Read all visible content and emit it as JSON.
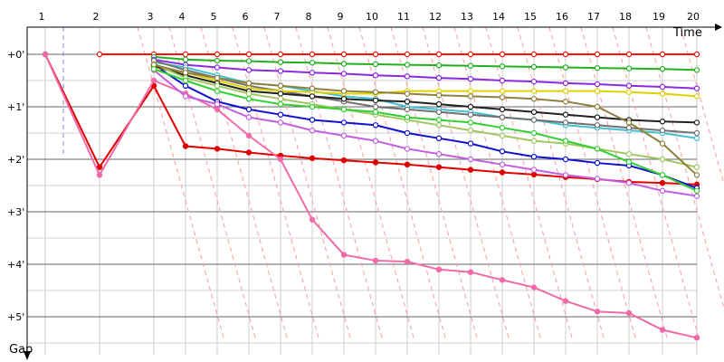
{
  "chart_data": {
    "type": "line",
    "xlabel": "Time",
    "ylabel": "Gap",
    "lap_labels": [
      "1",
      "2",
      "3",
      "4",
      "5",
      "6",
      "7",
      "8",
      "9",
      "10",
      "11",
      "12",
      "13",
      "14",
      "15",
      "16",
      "17",
      "18",
      "19",
      "20"
    ],
    "gap_ticks": [
      "+0'",
      "+1'",
      "+2'",
      "+3'",
      "+4'",
      "+5'"
    ],
    "ylim_minutes": [
      0,
      5.5
    ],
    "grid": true,
    "dashed_guides": true,
    "series": [
      {
        "color": "#e00000",
        "points": [
          [
            1,
            0
          ],
          [
            2,
            2.15
          ],
          [
            3,
            0.6
          ],
          [
            4,
            1.75
          ],
          [
            5,
            1.8
          ],
          [
            6,
            1.87
          ],
          [
            7,
            1.93
          ],
          [
            8,
            1.98
          ],
          [
            9,
            2.02
          ],
          [
            10,
            2.06
          ],
          [
            11,
            2.1
          ],
          [
            12,
            2.15
          ],
          [
            13,
            2.2
          ],
          [
            14,
            2.25
          ],
          [
            15,
            2.29
          ],
          [
            16,
            2.34
          ],
          [
            17,
            2.38
          ],
          [
            18,
            2.43
          ],
          [
            19,
            2.45
          ],
          [
            20,
            2.48
          ]
        ]
      },
      {
        "color": "#f06aa8",
        "points": [
          [
            1,
            0
          ],
          [
            2,
            2.3
          ],
          [
            3,
            0.5
          ],
          [
            4,
            0.75
          ],
          [
            5,
            1.05
          ],
          [
            6,
            1.55
          ],
          [
            7,
            2.0
          ],
          [
            8,
            3.15
          ],
          [
            9,
            3.82
          ],
          [
            10,
            3.93
          ],
          [
            11,
            3.95
          ],
          [
            12,
            4.1
          ],
          [
            13,
            4.15
          ],
          [
            14,
            4.3
          ],
          [
            15,
            4.44
          ],
          [
            16,
            4.7
          ],
          [
            17,
            4.9
          ],
          [
            18,
            4.93
          ],
          [
            19,
            5.25
          ],
          [
            20,
            5.4
          ]
        ]
      },
      {
        "color": "#ff1010",
        "points": [
          [
            2,
            0
          ],
          [
            3,
            0
          ],
          [
            4,
            0
          ],
          [
            5,
            0
          ],
          [
            6,
            0
          ],
          [
            7,
            0
          ],
          [
            8,
            0
          ],
          [
            9,
            0
          ],
          [
            10,
            0
          ],
          [
            11,
            0
          ],
          [
            12,
            0
          ],
          [
            13,
            0
          ],
          [
            14,
            0
          ],
          [
            15,
            0
          ],
          [
            16,
            0
          ],
          [
            17,
            0
          ],
          [
            18,
            0
          ],
          [
            19,
            0
          ],
          [
            20,
            0
          ]
        ]
      },
      {
        "color": "#20b020",
        "points": [
          [
            3,
            0.05
          ],
          [
            4,
            0.1
          ],
          [
            5,
            0.12
          ],
          [
            6,
            0.13
          ],
          [
            7,
            0.15
          ],
          [
            8,
            0.16
          ],
          [
            9,
            0.18
          ],
          [
            10,
            0.19
          ],
          [
            11,
            0.2
          ],
          [
            12,
            0.21
          ],
          [
            13,
            0.22
          ],
          [
            14,
            0.23
          ],
          [
            15,
            0.24
          ],
          [
            16,
            0.25
          ],
          [
            17,
            0.26
          ],
          [
            18,
            0.27
          ],
          [
            19,
            0.28
          ],
          [
            20,
            0.3
          ]
        ]
      },
      {
        "color": "#8a2be2",
        "points": [
          [
            3,
            0.1
          ],
          [
            4,
            0.2
          ],
          [
            5,
            0.25
          ],
          [
            6,
            0.3
          ],
          [
            7,
            0.32
          ],
          [
            8,
            0.35
          ],
          [
            9,
            0.37
          ],
          [
            10,
            0.4
          ],
          [
            11,
            0.42
          ],
          [
            12,
            0.45
          ],
          [
            13,
            0.47
          ],
          [
            14,
            0.5
          ],
          [
            15,
            0.52
          ],
          [
            16,
            0.55
          ],
          [
            17,
            0.57
          ],
          [
            18,
            0.6
          ],
          [
            19,
            0.62
          ],
          [
            20,
            0.65
          ]
        ]
      },
      {
        "color": "#1010d0",
        "points": [
          [
            3,
            0.2
          ],
          [
            4,
            0.6
          ],
          [
            5,
            0.9
          ],
          [
            6,
            1.05
          ],
          [
            7,
            1.15
          ],
          [
            8,
            1.25
          ],
          [
            9,
            1.3
          ],
          [
            10,
            1.35
          ],
          [
            11,
            1.5
          ],
          [
            12,
            1.6
          ],
          [
            13,
            1.7
          ],
          [
            14,
            1.85
          ],
          [
            15,
            1.95
          ],
          [
            16,
            2.0
          ],
          [
            17,
            2.07
          ],
          [
            18,
            2.12
          ],
          [
            19,
            2.3
          ],
          [
            20,
            2.55
          ]
        ]
      },
      {
        "color": "#c060e0",
        "points": [
          [
            3,
            0.3
          ],
          [
            4,
            0.8
          ],
          [
            5,
            0.95
          ],
          [
            6,
            1.2
          ],
          [
            7,
            1.3
          ],
          [
            8,
            1.45
          ],
          [
            9,
            1.55
          ],
          [
            10,
            1.65
          ],
          [
            11,
            1.8
          ],
          [
            12,
            1.9
          ],
          [
            13,
            2.0
          ],
          [
            14,
            2.1
          ],
          [
            15,
            2.2
          ],
          [
            16,
            2.3
          ],
          [
            17,
            2.37
          ],
          [
            18,
            2.45
          ],
          [
            19,
            2.6
          ],
          [
            20,
            2.7
          ]
        ]
      },
      {
        "color": "#40c0d0",
        "points": [
          [
            3,
            0.15
          ],
          [
            4,
            0.25
          ],
          [
            5,
            0.4
          ],
          [
            6,
            0.55
          ],
          [
            7,
            0.6
          ],
          [
            8,
            0.7
          ],
          [
            9,
            0.8
          ],
          [
            10,
            0.85
          ],
          [
            11,
            1.0
          ],
          [
            12,
            1.05
          ],
          [
            13,
            1.1
          ],
          [
            14,
            1.2
          ],
          [
            15,
            1.25
          ],
          [
            16,
            1.35
          ],
          [
            17,
            1.4
          ],
          [
            18,
            1.45
          ],
          [
            19,
            1.5
          ],
          [
            20,
            1.6
          ]
        ]
      },
      {
        "color": "#707070",
        "points": [
          [
            3,
            0.12
          ],
          [
            4,
            0.3
          ],
          [
            5,
            0.45
          ],
          [
            6,
            0.6
          ],
          [
            7,
            0.7
          ],
          [
            8,
            0.8
          ],
          [
            9,
            0.9
          ],
          [
            10,
            1.0
          ],
          [
            11,
            1.05
          ],
          [
            12,
            1.1
          ],
          [
            13,
            1.15
          ],
          [
            14,
            1.2
          ],
          [
            15,
            1.25
          ],
          [
            16,
            1.3
          ],
          [
            17,
            1.35
          ],
          [
            18,
            1.4
          ],
          [
            19,
            1.45
          ],
          [
            20,
            1.5
          ]
        ]
      },
      {
        "color": "#e0d000",
        "points": [
          [
            3,
            0.25
          ],
          [
            4,
            0.35
          ],
          [
            5,
            0.5
          ],
          [
            6,
            0.65
          ],
          [
            7,
            0.7
          ],
          [
            8,
            0.72
          ],
          [
            9,
            0.75
          ],
          [
            10,
            0.75
          ],
          [
            11,
            0.7
          ],
          [
            12,
            0.7
          ],
          [
            13,
            0.7
          ],
          [
            14,
            0.7
          ],
          [
            15,
            0.7
          ],
          [
            16,
            0.7
          ],
          [
            17,
            0.7
          ],
          [
            18,
            0.72
          ],
          [
            19,
            0.75
          ],
          [
            20,
            0.8
          ]
        ]
      },
      {
        "color": "#202020",
        "points": [
          [
            3,
            0.22
          ],
          [
            4,
            0.4
          ],
          [
            5,
            0.55
          ],
          [
            6,
            0.7
          ],
          [
            7,
            0.75
          ],
          [
            8,
            0.8
          ],
          [
            9,
            0.85
          ],
          [
            10,
            0.88
          ],
          [
            11,
            0.9
          ],
          [
            12,
            0.95
          ],
          [
            13,
            1.0
          ],
          [
            14,
            1.05
          ],
          [
            15,
            1.1
          ],
          [
            16,
            1.15
          ],
          [
            17,
            1.2
          ],
          [
            18,
            1.25
          ],
          [
            19,
            1.28
          ],
          [
            20,
            1.3
          ]
        ]
      },
      {
        "color": "#a0c860",
        "points": [
          [
            3,
            0.18
          ],
          [
            4,
            0.45
          ],
          [
            5,
            0.6
          ],
          [
            6,
            0.75
          ],
          [
            7,
            0.85
          ],
          [
            8,
            0.95
          ],
          [
            9,
            1.05
          ],
          [
            10,
            1.15
          ],
          [
            11,
            1.25
          ],
          [
            12,
            1.35
          ],
          [
            13,
            1.45
          ],
          [
            14,
            1.55
          ],
          [
            15,
            1.65
          ],
          [
            16,
            1.7
          ],
          [
            17,
            1.8
          ],
          [
            18,
            1.9
          ],
          [
            19,
            2.0
          ],
          [
            20,
            2.15
          ]
        ]
      },
      {
        "color": "#908040",
        "points": [
          [
            3,
            0.2
          ],
          [
            4,
            0.35
          ],
          [
            5,
            0.45
          ],
          [
            6,
            0.55
          ],
          [
            7,
            0.6
          ],
          [
            8,
            0.65
          ],
          [
            9,
            0.7
          ],
          [
            10,
            0.72
          ],
          [
            11,
            0.75
          ],
          [
            12,
            0.78
          ],
          [
            13,
            0.8
          ],
          [
            14,
            0.82
          ],
          [
            15,
            0.85
          ],
          [
            16,
            0.9
          ],
          [
            17,
            1.0
          ],
          [
            18,
            1.3
          ],
          [
            19,
            1.7
          ],
          [
            20,
            2.3
          ]
        ]
      },
      {
        "color": "#30d030",
        "points": [
          [
            3,
            0.28
          ],
          [
            4,
            0.5
          ],
          [
            5,
            0.7
          ],
          [
            6,
            0.85
          ],
          [
            7,
            0.95
          ],
          [
            8,
            1.0
          ],
          [
            9,
            1.05
          ],
          [
            10,
            1.1
          ],
          [
            11,
            1.2
          ],
          [
            12,
            1.25
          ],
          [
            13,
            1.3
          ],
          [
            14,
            1.4
          ],
          [
            15,
            1.5
          ],
          [
            16,
            1.65
          ],
          [
            17,
            1.8
          ],
          [
            18,
            2.05
          ],
          [
            19,
            2.3
          ],
          [
            20,
            2.6
          ]
        ]
      }
    ]
  }
}
